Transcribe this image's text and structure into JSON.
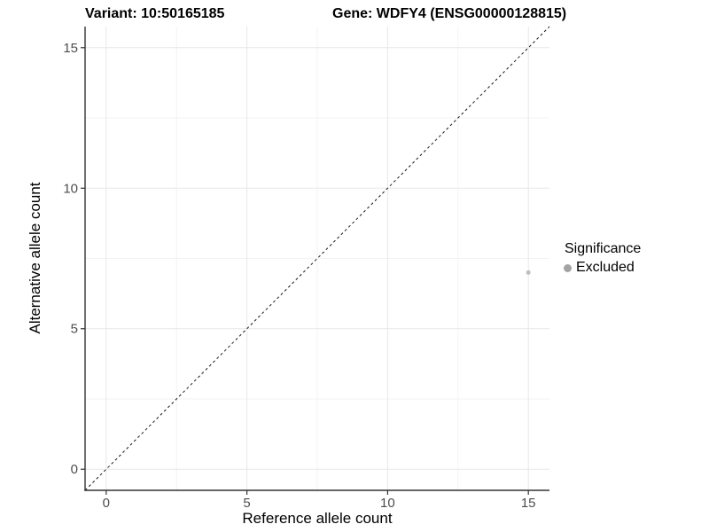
{
  "chart_data": {
    "type": "scatter",
    "title_parts": [
      "Variant: 10:50165185",
      "Gene: WDFY4 (ENSG00000128815)"
    ],
    "xlabel": "Reference allele count",
    "ylabel": "Alternative allele count",
    "xlim": [
      -0.75,
      15.75
    ],
    "ylim": [
      -0.75,
      15.75
    ],
    "xticks": [
      0,
      5,
      10,
      15
    ],
    "yticks": [
      0,
      5,
      10,
      15
    ],
    "xticks_minor": [
      2.5,
      7.5,
      12.5
    ],
    "yticks_minor": [
      2.5,
      7.5,
      12.5
    ],
    "grid": true,
    "identity_line": {
      "style": "dashed",
      "x1": -0.75,
      "y1": -0.75,
      "x2": 15.75,
      "y2": 15.75,
      "color": "#1a1a1a"
    },
    "series": [
      {
        "name": "Excluded",
        "color": "#bebebe",
        "point_radius": 2.5,
        "points": [
          {
            "x": 15,
            "y": 7
          }
        ]
      }
    ],
    "legend": {
      "title": "Significance",
      "position": "right",
      "entries": [
        {
          "label": "Excluded",
          "color": "#a3a3a3"
        }
      ]
    },
    "colors": {
      "background": "#ffffff",
      "grid_major": "#e7e7e7",
      "grid_minor": "#f3f3f3",
      "axis_line": "#333333",
      "tick_mark": "#333333",
      "tick_label": "#4d4d4d"
    }
  }
}
